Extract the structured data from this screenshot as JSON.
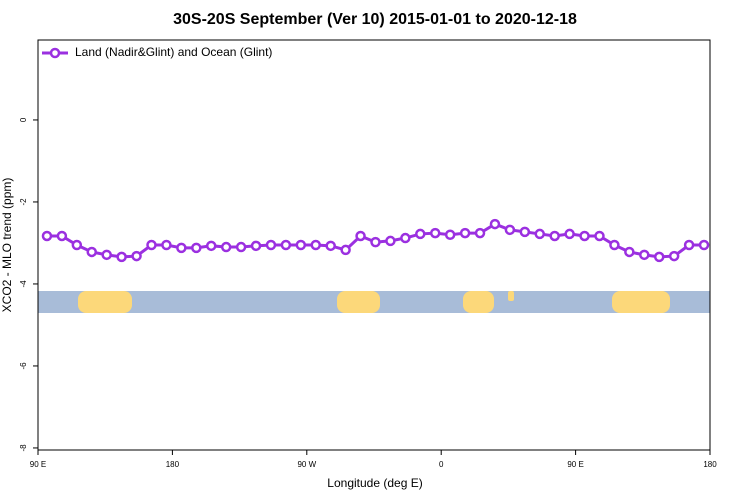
{
  "chart_data": {
    "type": "line",
    "title": "30S-20S September (Ver 10)   2015-01-01 to 2020-12-18",
    "xlabel": "Longitude (deg E)",
    "ylabel": "XCO2 - MLO trend (ppm)",
    "x": [
      96,
      106,
      116,
      126,
      136,
      146,
      156,
      166,
      176,
      186,
      196,
      206,
      216,
      226,
      236,
      246,
      256,
      266,
      276,
      286,
      296,
      306,
      316,
      326,
      336,
      346,
      356,
      366,
      376,
      386,
      396,
      406,
      416,
      426,
      436,
      446,
      456,
      466,
      476,
      486,
      496,
      506,
      516,
      526,
      536
    ],
    "series": [
      {
        "name": "Land (Nadir&Glint) and Ocean (Glint)",
        "color": "#9b30e0",
        "values": [
          -2.83,
          -2.83,
          -3.05,
          -3.22,
          -3.29,
          -3.34,
          -3.32,
          -3.05,
          -3.05,
          -3.12,
          -3.12,
          -3.07,
          -3.1,
          -3.1,
          -3.07,
          -3.05,
          -3.05,
          -3.05,
          -3.05,
          -3.07,
          -3.17,
          -2.83,
          -2.98,
          -2.95,
          -2.88,
          -2.78,
          -2.76,
          -2.8,
          -2.76,
          -2.76,
          -2.54,
          -2.68,
          -2.73,
          -2.78,
          -2.83,
          -2.78,
          -2.83,
          -2.83,
          -3.05,
          -3.22,
          -3.29,
          -3.34,
          -3.32,
          -3.05,
          -3.05
        ]
      }
    ],
    "xlim": [
      90,
      540
    ],
    "ylim": [
      -8.05,
      1.95
    ],
    "xticks": [
      {
        "value": 90,
        "label": "90 E"
      },
      180,
      {
        "value": 270,
        "label": "90 W"
      },
      {
        "value": 360,
        "label": "0"
      },
      {
        "value": 450,
        "label": "90 E"
      },
      {
        "value": 540,
        "label": "180"
      }
    ],
    "yticks": [
      0,
      -2,
      -4,
      -6,
      -8
    ],
    "legend": "top-left"
  }
}
